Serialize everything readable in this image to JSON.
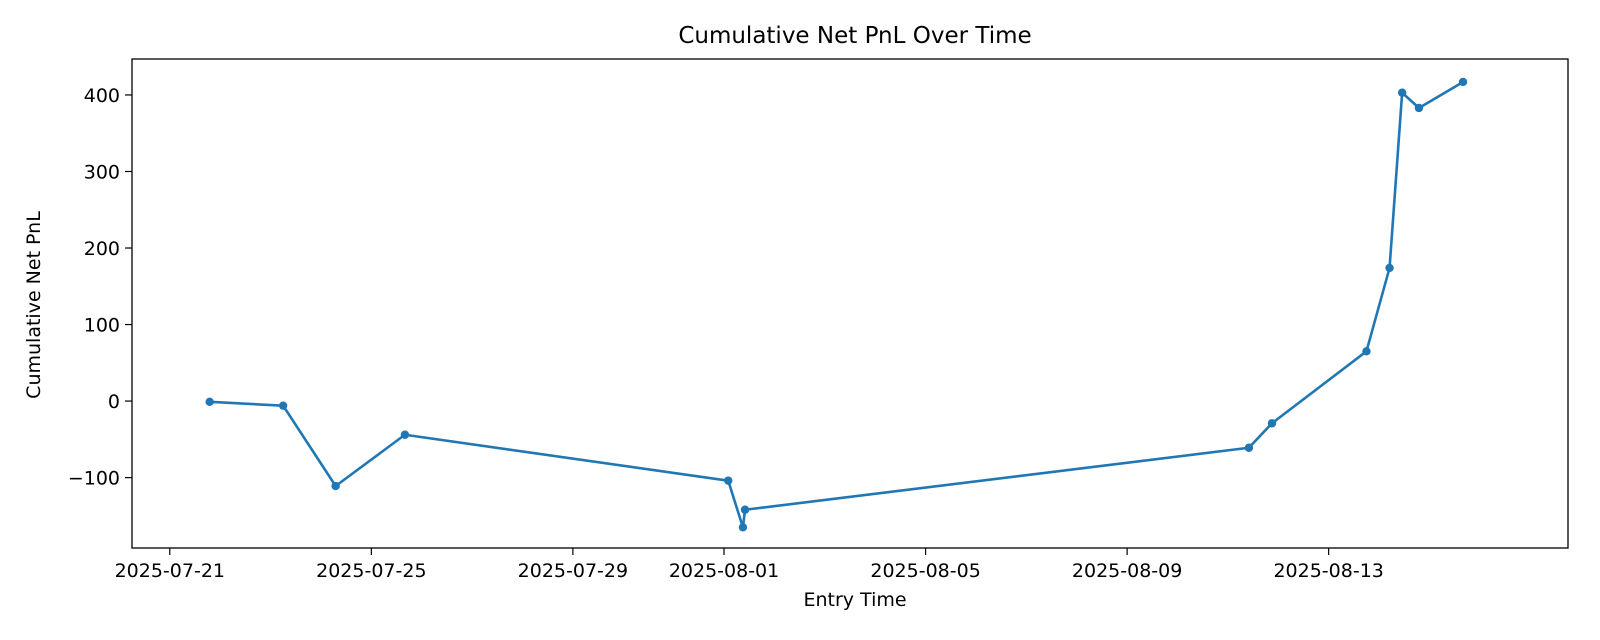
{
  "chart_data": {
    "type": "line",
    "title": "Cumulative Net PnL Over Time",
    "xlabel": "Entry Time",
    "ylabel": "Cumulative Net PnL",
    "x_scale": "date",
    "xlim": [
      "2025-07-20T06:00",
      "2025-08-17T18:00"
    ],
    "ylim": [
      -192,
      447
    ],
    "x_ticks": [
      "2025-07-21",
      "2025-07-25",
      "2025-07-29",
      "2025-08-01",
      "2025-08-05",
      "2025-08-09",
      "2025-08-13"
    ],
    "y_ticks": [
      400,
      300,
      200,
      100,
      0,
      -100
    ],
    "y_tick_labels": [
      "400",
      "300",
      "200",
      "100",
      "0",
      "−100"
    ],
    "grid": false,
    "line_color": "#1f77b4",
    "marker": "circle",
    "series": [
      {
        "x": [
          "2025-07-21T19:00",
          "2025-07-23T06:00",
          "2025-07-24T07:00",
          "2025-07-25T16:00",
          "2025-08-01T02:00",
          "2025-08-01T09:00",
          "2025-08-01T10:00",
          "2025-08-11T10:00",
          "2025-08-11T21:00",
          "2025-08-13T18:00",
          "2025-08-14T05:00",
          "2025-08-14T11:00",
          "2025-08-14T19:00",
          "2025-08-15T16:00"
        ],
        "y": [
          -1,
          -6,
          -111,
          -44,
          -104,
          -165,
          -142,
          -61,
          -29,
          65,
          174,
          403,
          383,
          417
        ]
      }
    ]
  }
}
